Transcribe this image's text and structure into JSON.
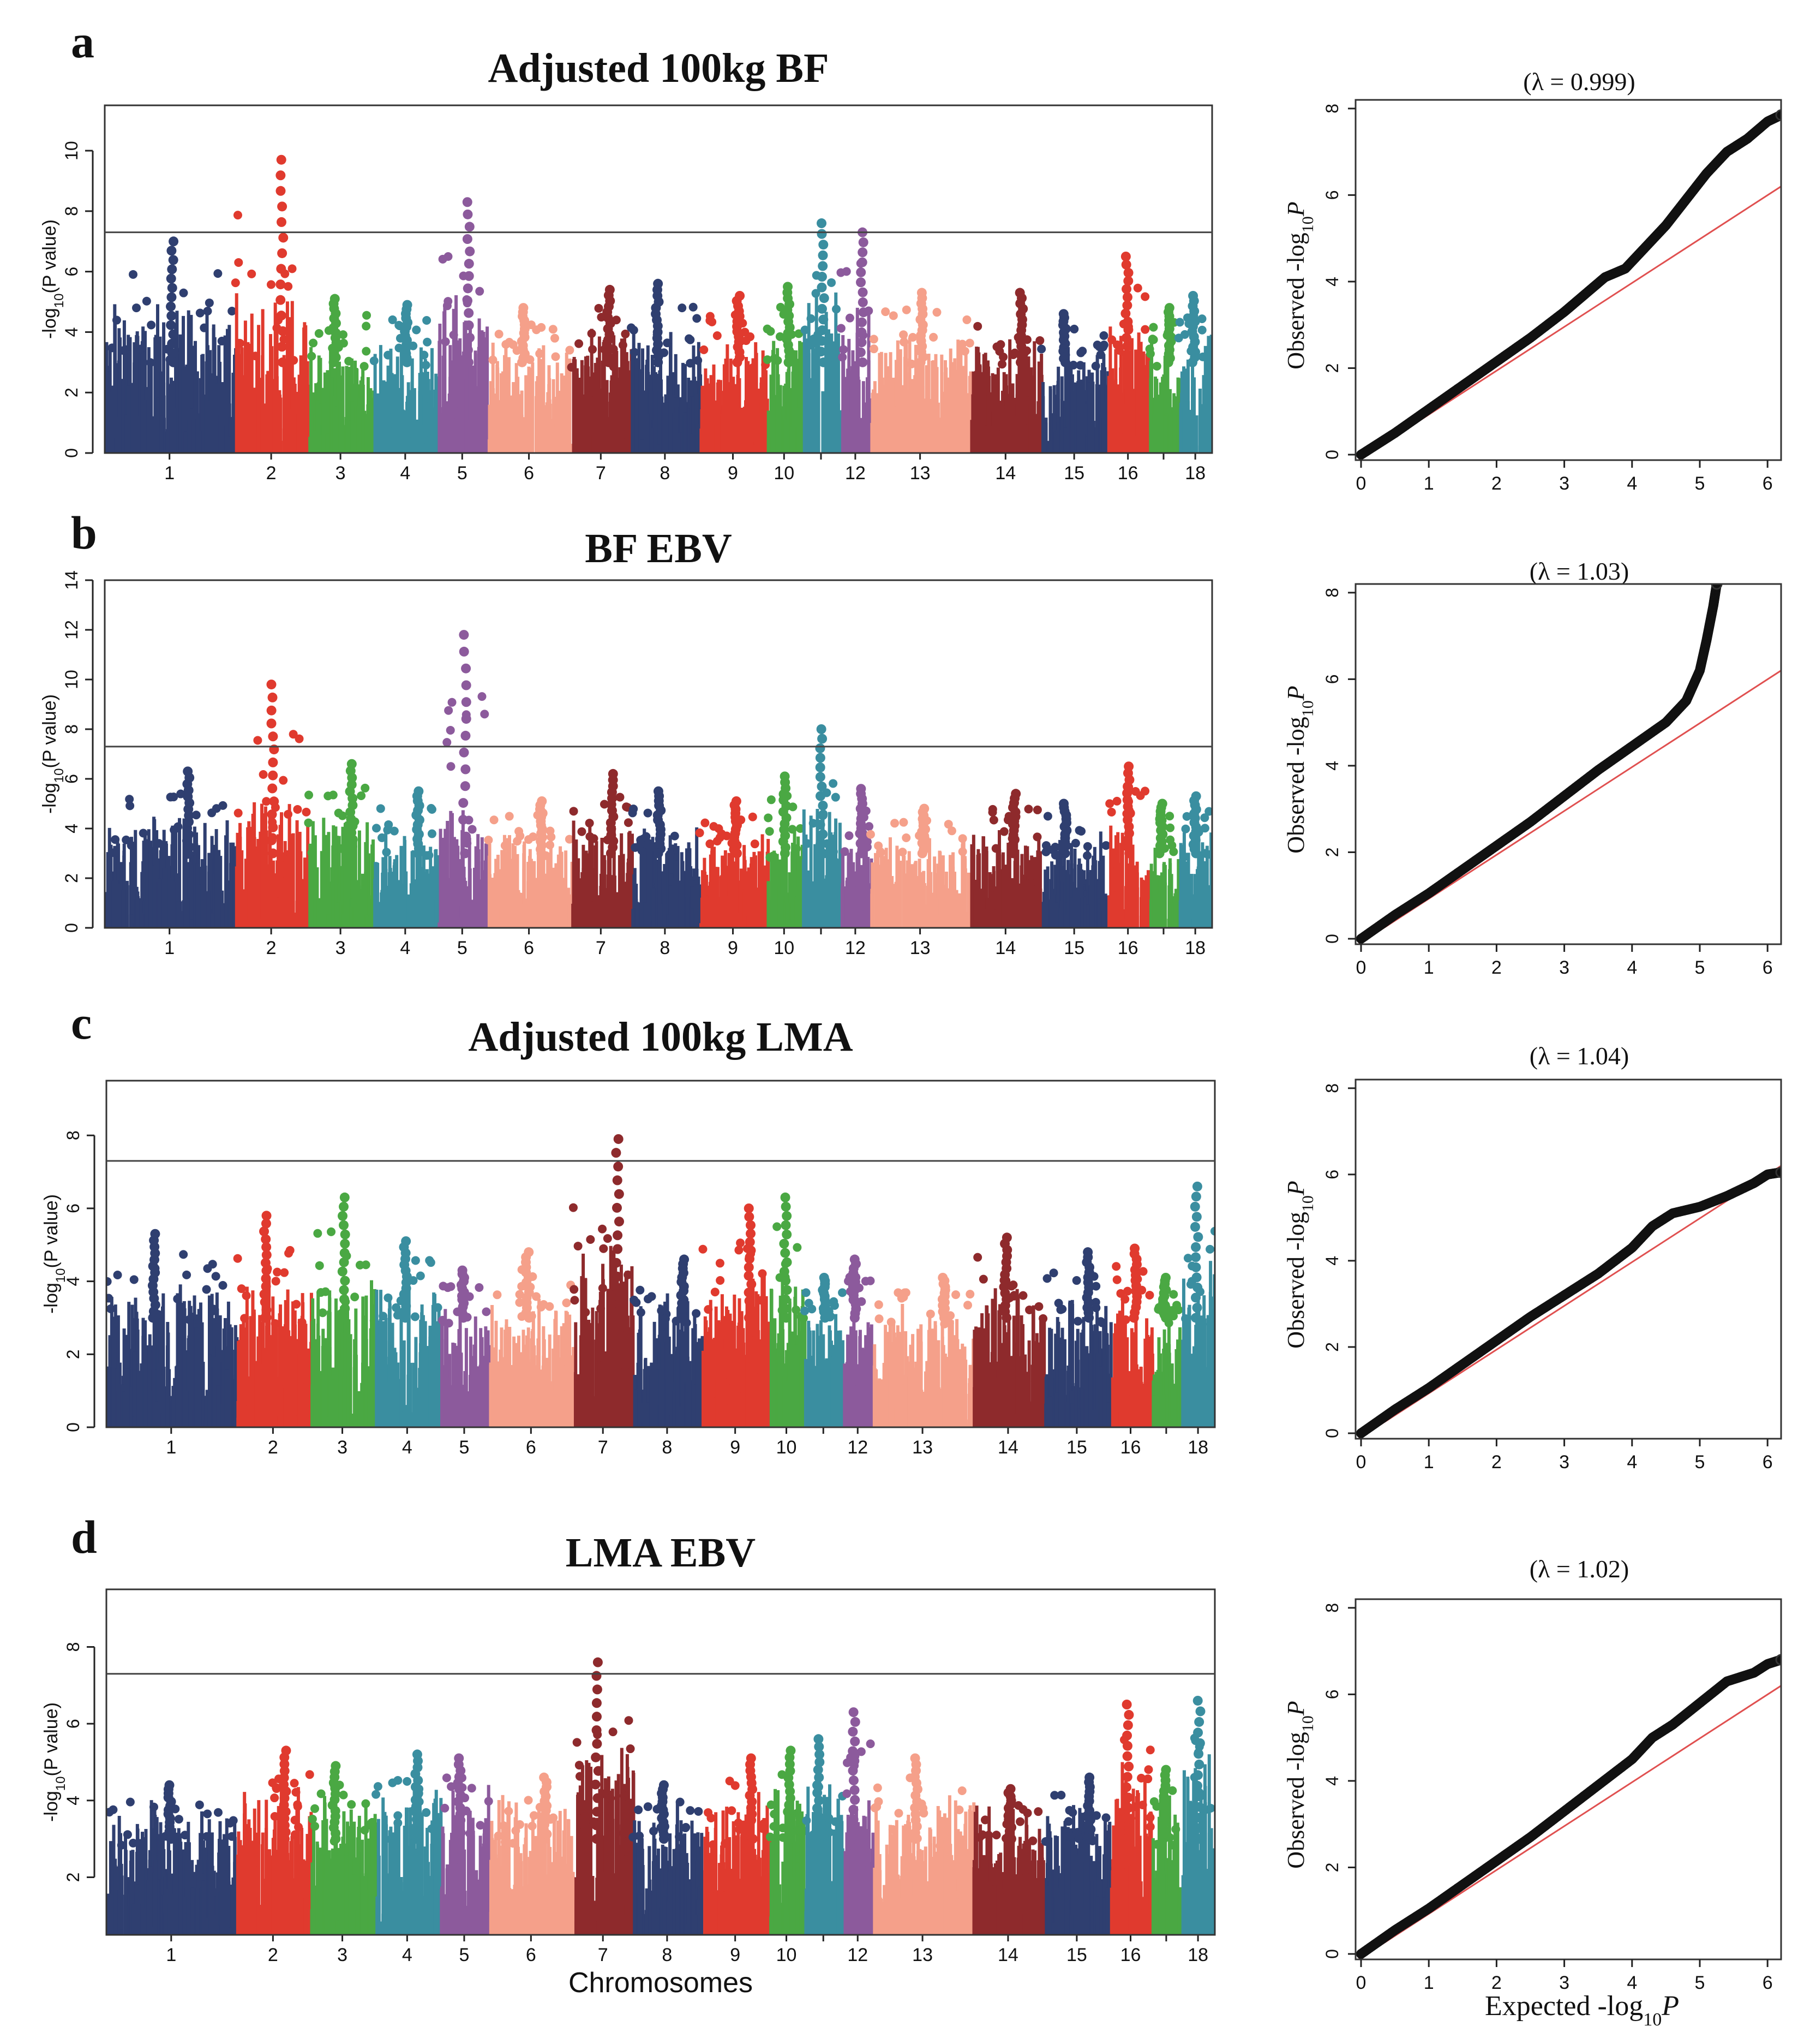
{
  "colors": {
    "chromosomes": [
      "#2f3f70",
      "#e03a2e",
      "#4aa843",
      "#3a8ea0",
      "#8c5a9c",
      "#f5a08a",
      "#8e2a2c",
      "#2f3f70",
      "#e03a2e",
      "#4aa843",
      "#3a8ea0",
      "#8c5a9c",
      "#f5a08a",
      "#8e2a2c",
      "#2f3f70",
      "#e03a2e",
      "#4aa843",
      "#3a8ea0"
    ],
    "qq_points": "#111111",
    "qq_line": "#e05050",
    "threshold": "#444444"
  },
  "caption": {
    "manhattan_x": "Chromosomes",
    "qq_x_prefix": "Expected -log",
    "qq_x_sub": "10",
    "qq_x_suffix": "P",
    "qq_y_prefix": "Observed -log",
    "qq_y_sub": "10",
    "qq_y_suffix": "P",
    "manhattan_y_prefix": "-log",
    "manhattan_y_sub": "10",
    "manhattan_y_suffix": "(P value)"
  },
  "chart_data": [
    {
      "type": "scatter",
      "kind": "manhattan",
      "panel": "a",
      "title": "Adjusted 100kg BF",
      "ylabel": "-log10(P value)",
      "ylim": [
        0,
        11.5
      ],
      "yticks": [
        0,
        2,
        4,
        6,
        8,
        10
      ],
      "threshold": 7.3,
      "categories": [
        "1",
        "2",
        "3",
        "4",
        "5",
        "6",
        "7",
        "8",
        "9",
        "10",
        "11",
        "12",
        "13",
        "14",
        "15",
        "16",
        "17",
        "18"
      ],
      "xtick_labels": [
        "1",
        "2",
        "3",
        "4",
        "5",
        "6",
        "7",
        "8",
        "9",
        "10",
        "",
        "12",
        "13",
        "14",
        "15",
        "16",
        "",
        "18"
      ],
      "chromosome_peaks": [
        7.0,
        9.7,
        5.1,
        4.9,
        8.3,
        4.8,
        5.4,
        5.6,
        5.2,
        5.5,
        7.6,
        7.3,
        5.3,
        5.3,
        4.6,
        6.5,
        4.8,
        5.2
      ]
    },
    {
      "type": "scatter",
      "kind": "qq",
      "panel": "a",
      "lambda_label": "(λ = 0.999)",
      "xlim": [
        0,
        6.2
      ],
      "ylim": [
        0,
        8.2
      ],
      "xticks": [
        0,
        1,
        2,
        3,
        4,
        5,
        6
      ],
      "yticks": [
        0,
        2,
        4,
        6,
        8
      ],
      "x": [
        0,
        0.5,
        1,
        1.5,
        2,
        2.5,
        3,
        3.3,
        3.6,
        3.9,
        4.2,
        4.5,
        4.8,
        5.1,
        5.4,
        5.7,
        6.0,
        6.2
      ],
      "y": [
        0,
        0.5,
        1.05,
        1.6,
        2.15,
        2.7,
        3.3,
        3.7,
        4.1,
        4.3,
        4.8,
        5.3,
        5.9,
        6.5,
        7.0,
        7.3,
        7.7,
        7.85
      ]
    },
    {
      "type": "scatter",
      "kind": "manhattan",
      "panel": "b",
      "title": "BF EBV",
      "ylabel": "-log10(P value)",
      "ylim": [
        0,
        14
      ],
      "yticks": [
        0,
        2,
        4,
        6,
        8,
        10,
        12,
        14
      ],
      "threshold": 7.3,
      "categories": [
        "1",
        "2",
        "3",
        "4",
        "5",
        "6",
        "7",
        "8",
        "9",
        "10",
        "11",
        "12",
        "13",
        "14",
        "15",
        "16",
        "17",
        "18"
      ],
      "xtick_labels": [
        "1",
        "2",
        "3",
        "4",
        "5",
        "6",
        "7",
        "8",
        "9",
        "10",
        "",
        "12",
        "13",
        "14",
        "15",
        "16",
        "",
        "18"
      ],
      "chromosome_peaks": [
        6.3,
        9.8,
        6.6,
        5.5,
        11.8,
        5.1,
        6.2,
        5.5,
        5.1,
        6.1,
        8.0,
        5.6,
        4.8,
        5.4,
        5.0,
        6.5,
        5.0,
        5.3
      ]
    },
    {
      "type": "scatter",
      "kind": "qq",
      "panel": "b",
      "lambda_label": "(λ = 1.03)",
      "xlim": [
        0,
        6.2
      ],
      "ylim": [
        0,
        8.2
      ],
      "xticks": [
        0,
        1,
        2,
        3,
        4,
        5,
        6
      ],
      "yticks": [
        0,
        2,
        4,
        6,
        8
      ],
      "x": [
        0,
        0.5,
        1,
        1.5,
        2,
        2.5,
        3,
        3.5,
        4,
        4.5,
        4.8,
        5.0,
        5.1,
        5.2,
        5.25
      ],
      "y": [
        0,
        0.55,
        1.05,
        1.6,
        2.15,
        2.7,
        3.3,
        3.9,
        4.45,
        5.0,
        5.5,
        6.2,
        6.9,
        7.7,
        8.2
      ]
    },
    {
      "type": "scatter",
      "kind": "manhattan",
      "panel": "c",
      "title": "Adjusted 100kg LMA",
      "ylabel": "-log10(P value)",
      "ylim": [
        0,
        9.5
      ],
      "yticks": [
        0,
        2,
        4,
        6,
        8
      ],
      "threshold": 7.3,
      "categories": [
        "1",
        "2",
        "3",
        "4",
        "5",
        "6",
        "7",
        "8",
        "9",
        "10",
        "11",
        "12",
        "13",
        "14",
        "15",
        "16",
        "17",
        "18"
      ],
      "xtick_labels": [
        "1",
        "2",
        "3",
        "4",
        "5",
        "6",
        "7",
        "8",
        "9",
        "10",
        "",
        "12",
        "13",
        "14",
        "15",
        "16",
        "",
        "18"
      ],
      "chromosome_peaks": [
        5.3,
        5.8,
        6.3,
        5.1,
        4.3,
        4.8,
        7.9,
        4.6,
        6.0,
        6.3,
        4.1,
        4.6,
        4.1,
        5.2,
        4.8,
        4.9,
        4.1,
        6.6
      ]
    },
    {
      "type": "scatter",
      "kind": "qq",
      "panel": "c",
      "lambda_label": "(λ = 1.04)",
      "xlim": [
        0,
        6.2
      ],
      "ylim": [
        0,
        8.2
      ],
      "xticks": [
        0,
        1,
        2,
        3,
        4,
        5,
        6
      ],
      "yticks": [
        0,
        2,
        4,
        6,
        8
      ],
      "x": [
        0,
        0.5,
        1,
        1.5,
        2,
        2.5,
        3,
        3.5,
        4,
        4.3,
        4.6,
        5.0,
        5.4,
        5.8,
        6.0,
        6.2
      ],
      "y": [
        0,
        0.55,
        1.05,
        1.6,
        2.15,
        2.7,
        3.2,
        3.7,
        4.3,
        4.8,
        5.1,
        5.25,
        5.5,
        5.8,
        6.0,
        6.05
      ]
    },
    {
      "type": "scatter",
      "kind": "manhattan",
      "panel": "d",
      "title": "LMA EBV",
      "ylabel": "-log10(P value)",
      "ylim": [
        0.5,
        9.5
      ],
      "yticks": [
        2,
        4,
        6,
        8
      ],
      "threshold": 7.3,
      "categories": [
        "1",
        "2",
        "3",
        "4",
        "5",
        "6",
        "7",
        "8",
        "9",
        "10",
        "11",
        "12",
        "13",
        "14",
        "15",
        "16",
        "17",
        "18"
      ],
      "xtick_labels": [
        "1",
        "2",
        "3",
        "4",
        "5",
        "6",
        "7",
        "8",
        "9",
        "10",
        "",
        "12",
        "13",
        "14",
        "15",
        "16",
        "",
        "18"
      ],
      "chromosome_peaks": [
        4.4,
        5.3,
        4.9,
        5.2,
        5.1,
        4.6,
        7.6,
        4.4,
        5.1,
        5.3,
        5.6,
        6.3,
        5.1,
        4.3,
        4.6,
        6.5,
        4.8,
        6.6
      ]
    },
    {
      "type": "scatter",
      "kind": "qq",
      "panel": "d",
      "lambda_label": "(λ = 1.02)",
      "xlim": [
        0,
        6.2
      ],
      "ylim": [
        0,
        8.2
      ],
      "xticks": [
        0,
        1,
        2,
        3,
        4,
        5,
        6
      ],
      "yticks": [
        0,
        2,
        4,
        6,
        8
      ],
      "x": [
        0,
        0.5,
        1,
        1.5,
        2,
        2.5,
        3,
        3.5,
        4,
        4.3,
        4.6,
        5.0,
        5.4,
        5.8,
        6.0,
        6.2
      ],
      "y": [
        0,
        0.55,
        1.05,
        1.6,
        2.15,
        2.7,
        3.3,
        3.9,
        4.5,
        5.0,
        5.3,
        5.8,
        6.3,
        6.5,
        6.7,
        6.8
      ]
    }
  ]
}
